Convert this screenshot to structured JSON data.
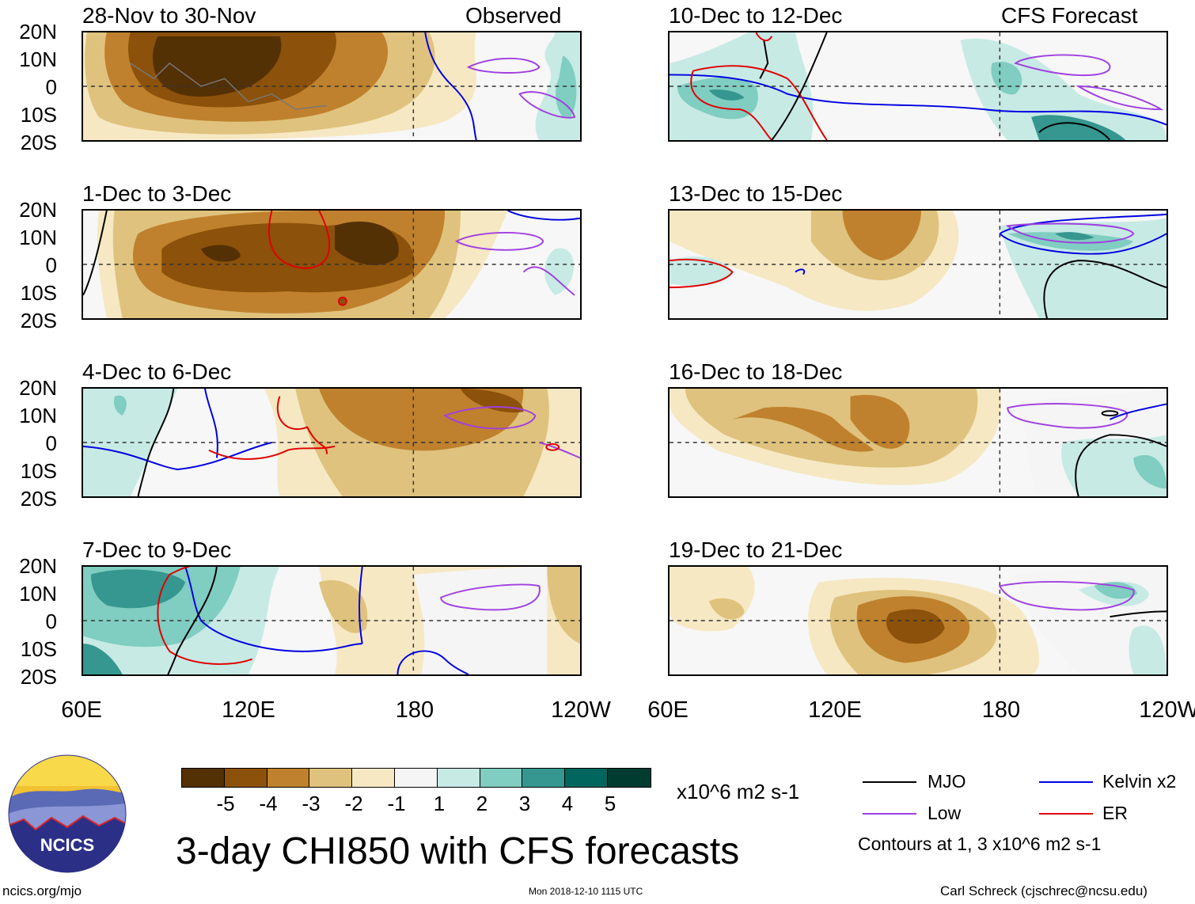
{
  "panels": [
    {
      "title": "28-Nov to 30-Nov",
      "label": "Observed"
    },
    {
      "title": "10-Dec to 12-Dec",
      "label": "CFS Forecast"
    },
    {
      "title": "1-Dec to 3-Dec"
    },
    {
      "title": "13-Dec to 15-Dec"
    },
    {
      "title": "4-Dec to 6-Dec"
    },
    {
      "title": "16-Dec to 18-Dec"
    },
    {
      "title": "7-Dec to 9-Dec"
    },
    {
      "title": "19-Dec to 21-Dec"
    }
  ],
  "lat_labels": [
    "20N",
    "10N",
    "0",
    "10S",
    "20S"
  ],
  "lon_labels": [
    "60E",
    "120E",
    "180",
    "120W"
  ],
  "colorbar": {
    "colors": [
      "#543005",
      "#8c510a",
      "#bf812d",
      "#dfc27d",
      "#f6e8c3",
      "#f5f5f5",
      "#c7eae5",
      "#80cdc1",
      "#35978f",
      "#01665e",
      "#003c30"
    ],
    "tick_labels": [
      "-5",
      "-4",
      "-3",
      "-2",
      "-1",
      "1",
      "2",
      "3",
      "4",
      "5"
    ],
    "units": "x10^6 m2 s-1"
  },
  "legend": {
    "mjo": "MJO",
    "low": "Low",
    "kelvin": "Kelvin x2",
    "er": "ER",
    "mjo_color": "#000000",
    "low_color": "#a040e0",
    "kelvin_color": "#0000e0",
    "er_color": "#e00000",
    "contours_note": "Contours at 1, 3 x10^6 m2 s-1"
  },
  "logo": {
    "text": "NCICS"
  },
  "footer": {
    "title": "3-day CHI850 with CFS forecasts",
    "site": "ncics.org/mjo",
    "timestamp": "Mon 2018-12-10 1115 UTC",
    "author": "Carl Schreck (cjschrec@ncsu.edu)"
  }
}
